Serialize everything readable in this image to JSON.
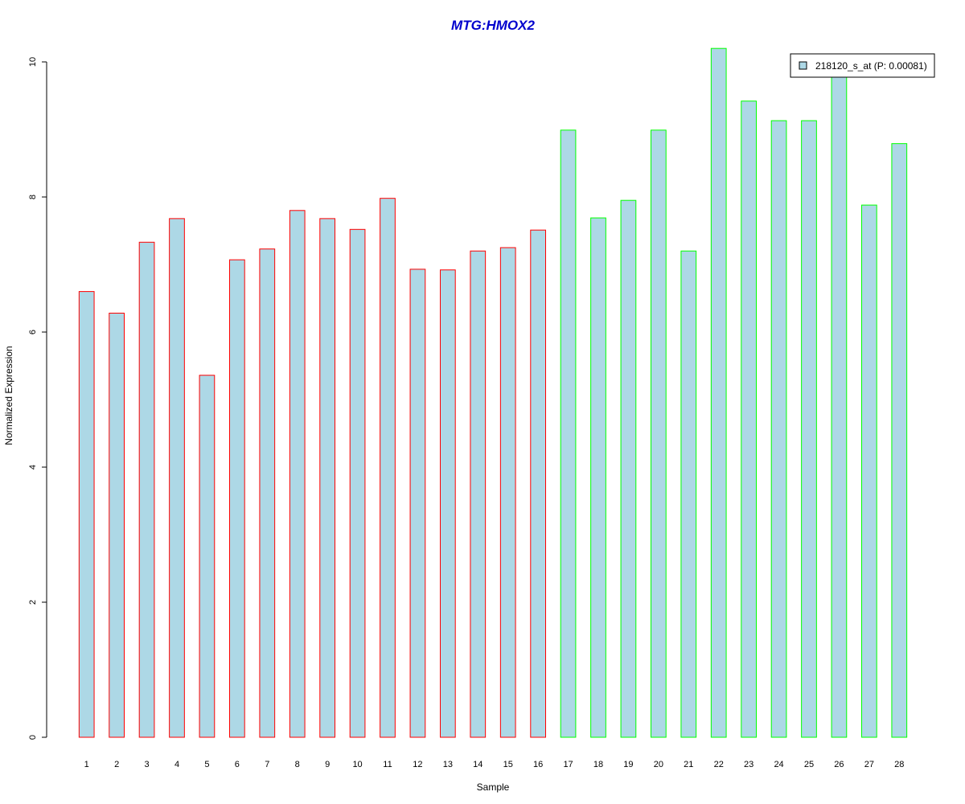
{
  "chart_data": {
    "type": "bar",
    "title": "MTG:HMOX2",
    "xlabel": "Sample",
    "ylabel": "Normalized Expression",
    "categories": [
      "1",
      "2",
      "3",
      "4",
      "5",
      "6",
      "7",
      "8",
      "9",
      "10",
      "11",
      "12",
      "13",
      "14",
      "15",
      "16",
      "17",
      "18",
      "19",
      "20",
      "21",
      "22",
      "23",
      "24",
      "25",
      "26",
      "27",
      "28"
    ],
    "series": [
      {
        "name": "218120_s_at (P: 0.00081)",
        "values": [
          6.6,
          6.28,
          7.33,
          7.68,
          5.36,
          7.07,
          7.23,
          7.8,
          7.68,
          7.52,
          7.98,
          6.93,
          6.92,
          7.2,
          7.25,
          7.51,
          8.99,
          7.69,
          7.95,
          8.99,
          7.2,
          10.2,
          9.42,
          9.13,
          9.13,
          9.8,
          7.88,
          8.79
        ]
      }
    ],
    "groups": [
      1,
      1,
      1,
      1,
      1,
      1,
      1,
      1,
      1,
      1,
      1,
      1,
      1,
      1,
      1,
      1,
      2,
      2,
      2,
      2,
      2,
      2,
      2,
      2,
      2,
      2,
      2,
      2
    ],
    "ylim": [
      0,
      10
    ],
    "yticks": [
      0,
      2,
      4,
      6,
      8,
      10
    ],
    "grid": false,
    "legend_position": "top-right",
    "colors": {
      "bar_fill": "#add8e6",
      "group1_border": "#ff0000",
      "group2_border": "#00ff00",
      "title": "#0000cd",
      "axis": "#000000"
    }
  }
}
